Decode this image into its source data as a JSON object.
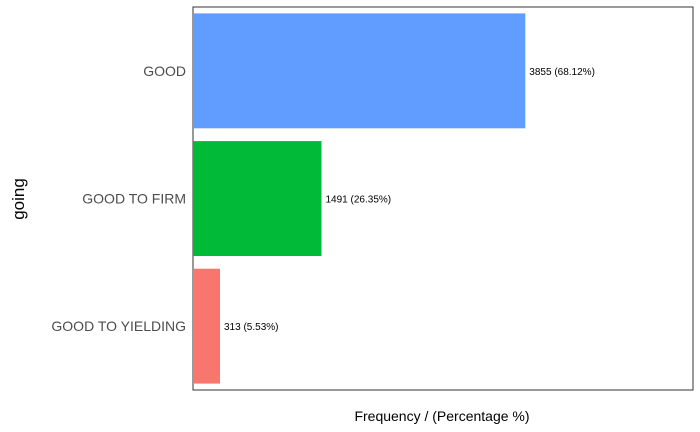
{
  "chart_data": {
    "type": "bar",
    "orientation": "horizontal",
    "categories": [
      "GOOD",
      "GOOD TO FIRM",
      "GOOD TO YIELDING"
    ],
    "values": [
      3855,
      1491,
      313
    ],
    "data_labels": [
      "3855 (68.12%)",
      "1491 (26.35%)",
      "313 (5.53%)"
    ],
    "colors": [
      "#619CFF",
      "#00BA38",
      "#F8766D"
    ],
    "xlabel": "Frequency / (Percentage %)",
    "ylabel": "going",
    "xlim": [
      0,
      5800
    ],
    "grid": false,
    "legend": "none"
  }
}
